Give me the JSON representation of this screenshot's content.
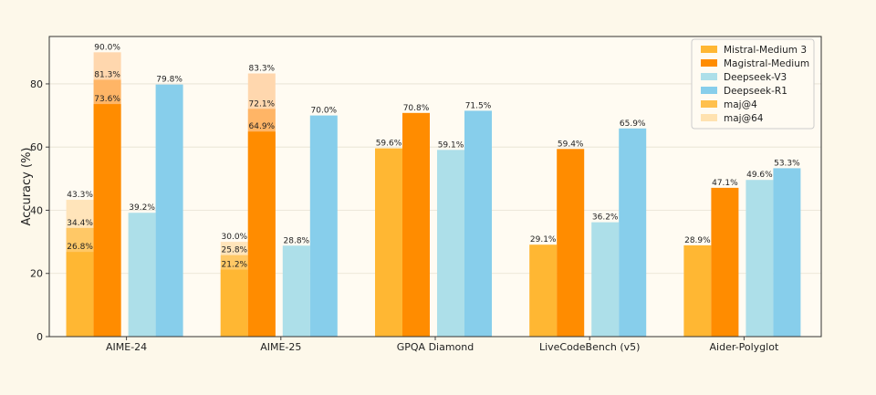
{
  "chart_data": {
    "type": "bar",
    "ylabel": "Accuracy (%)",
    "ylim": [
      0,
      95
    ],
    "yticks": [
      0,
      20,
      40,
      60,
      80
    ],
    "grid": true,
    "legend_position": "top-right",
    "categories": [
      "AIME-24",
      "AIME-25",
      "GPQA Diamond",
      "LiveCodeBench (v5)",
      "Aider-Polyglot"
    ],
    "series": [
      {
        "name": "Mistral-Medium 3",
        "color": "#FFB733",
        "values": [
          26.8,
          21.2,
          59.6,
          29.1,
          28.9
        ],
        "maj4": [
          34.4,
          25.8,
          null,
          null,
          null
        ],
        "maj64": [
          43.3,
          30.0,
          null,
          null,
          null
        ]
      },
      {
        "name": "Magistral-Medium",
        "color": "#FF8C00",
        "values": [
          73.6,
          64.9,
          70.8,
          59.4,
          47.1
        ],
        "maj4": [
          81.3,
          72.1,
          null,
          null,
          null
        ],
        "maj64": [
          90.0,
          83.3,
          null,
          null,
          null
        ]
      },
      {
        "name": "Deepseek-V3",
        "color": "#ADDFE9",
        "values": [
          39.2,
          28.8,
          59.1,
          36.2,
          49.6
        ]
      },
      {
        "name": "Deepseek-R1",
        "color": "#87CEEB",
        "values": [
          79.8,
          70.0,
          71.5,
          65.9,
          53.3
        ]
      }
    ],
    "legend": [
      {
        "label": "Mistral-Medium 3",
        "color": "#FFB733"
      },
      {
        "label": "Magistral-Medium",
        "color": "#FF8C00"
      },
      {
        "label": "Deepseek-V3",
        "color": "#ADDFE9"
      },
      {
        "label": "Deepseek-R1",
        "color": "#87CEEB"
      },
      {
        "label": "maj@4",
        "color": "#FFC04D"
      },
      {
        "label": "maj@64",
        "color": "#FFE2B0"
      }
    ]
  }
}
